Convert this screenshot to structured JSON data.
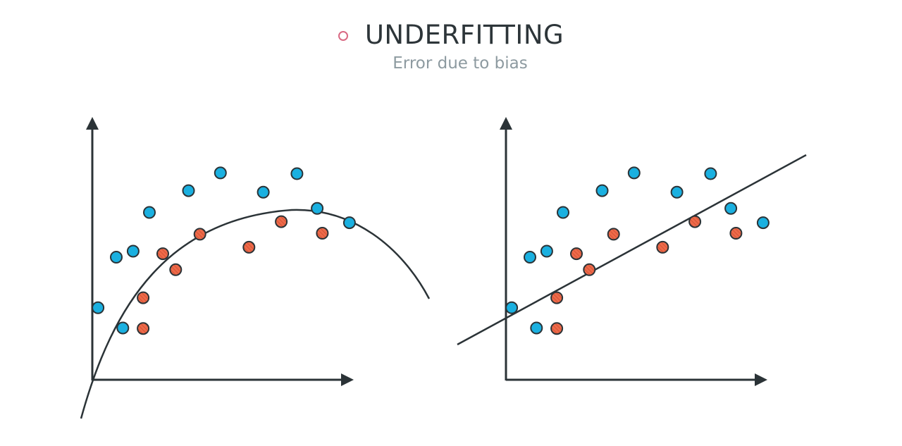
{
  "header": {
    "title": "UNDERFITTING",
    "subtitle": "Error due to bias",
    "marker_color": "#d96a84"
  },
  "colors": {
    "axis": "#2b3337",
    "blue_point": "#1ab0e0",
    "red_point": "#ee6a4a",
    "outline": "#2b3337"
  },
  "panels": [
    {
      "id": "left",
      "fit": "curve",
      "blue_points": [
        [
          0.2,
          2.88
        ],
        [
          0.84,
          4.9
        ],
        [
          2.0,
          6.69
        ],
        [
          3.37,
          7.56
        ],
        [
          4.49,
          8.27
        ],
        [
          5.99,
          7.5
        ],
        [
          7.17,
          8.24
        ],
        [
          7.88,
          6.85
        ],
        [
          9.01,
          6.28
        ],
        [
          1.07,
          2.07
        ],
        [
          1.43,
          5.14
        ]
      ],
      "red_points": [
        [
          2.92,
          4.4
        ],
        [
          5.49,
          5.3
        ],
        [
          3.77,
          5.82
        ],
        [
          6.62,
          6.32
        ],
        [
          8.06,
          5.86
        ],
        [
          2.47,
          5.04
        ],
        [
          1.78,
          3.28
        ],
        [
          1.78,
          2.05
        ]
      ]
    },
    {
      "id": "right",
      "fit": "line",
      "blue_points": [
        [
          0.2,
          2.88
        ],
        [
          0.84,
          4.9
        ],
        [
          2.0,
          6.69
        ],
        [
          3.37,
          7.56
        ],
        [
          4.49,
          8.27
        ],
        [
          5.99,
          7.5
        ],
        [
          7.17,
          8.24
        ],
        [
          7.88,
          6.85
        ],
        [
          9.01,
          6.28
        ],
        [
          1.07,
          2.07
        ],
        [
          1.43,
          5.14
        ]
      ],
      "red_points": [
        [
          2.92,
          4.4
        ],
        [
          5.49,
          5.3
        ],
        [
          3.77,
          5.82
        ],
        [
          6.62,
          6.32
        ],
        [
          8.06,
          5.86
        ],
        [
          2.47,
          5.04
        ],
        [
          1.78,
          3.28
        ],
        [
          1.78,
          2.05
        ]
      ]
    }
  ]
}
